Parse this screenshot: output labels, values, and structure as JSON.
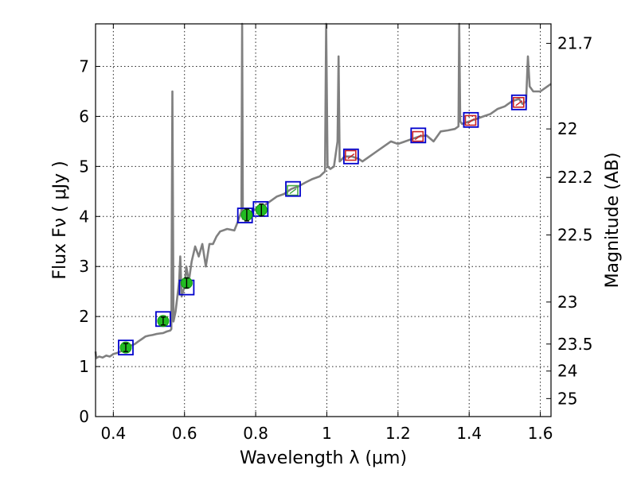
{
  "chart_data": {
    "type": "line",
    "xlabel": "Wavelength  λ (μm)",
    "ylabel": "Flux  Fν  ( μJy )",
    "ylabel_right": "Magnitude (AB)",
    "xlim": [
      0.35,
      1.63
    ],
    "ylim": [
      0,
      7.85
    ],
    "grid": true,
    "x_ticks": [
      0.4,
      0.6,
      0.8,
      1.0,
      1.2,
      1.4,
      1.6
    ],
    "x_tick_labels": [
      "0.4",
      "0.6",
      "0.8",
      "1",
      "1.2",
      "1.4",
      "1.6"
    ],
    "y_ticks": [
      0,
      1,
      2,
      3,
      4,
      5,
      6,
      7
    ],
    "y_tick_labels": [
      "0",
      "1",
      "2",
      "3",
      "4",
      "5",
      "6",
      "7"
    ],
    "mag_ticks": [
      {
        "label": "21.7",
        "flux": 7.46
      },
      {
        "label": "22",
        "flux": 5.75
      },
      {
        "label": "22.2",
        "flux": 4.78
      },
      {
        "label": "22.5",
        "flux": 3.63
      },
      {
        "label": "23",
        "flux": 2.29
      },
      {
        "label": "23.5",
        "flux": 1.45
      },
      {
        "label": "24",
        "flux": 0.91
      },
      {
        "label": "25",
        "flux": 0.36
      }
    ],
    "model_spectrum": {
      "color": "#808080",
      "points": [
        [
          0.35,
          1.3
        ],
        [
          0.352,
          1.17
        ],
        [
          0.36,
          1.2
        ],
        [
          0.37,
          1.18
        ],
        [
          0.38,
          1.22
        ],
        [
          0.39,
          1.2
        ],
        [
          0.4,
          1.25
        ],
        [
          0.41,
          1.27
        ],
        [
          0.42,
          1.3
        ],
        [
          0.43,
          1.33
        ],
        [
          0.44,
          1.38
        ],
        [
          0.45,
          1.42
        ],
        [
          0.46,
          1.45
        ],
        [
          0.47,
          1.5
        ],
        [
          0.48,
          1.55
        ],
        [
          0.49,
          1.6
        ],
        [
          0.5,
          1.62
        ],
        [
          0.51,
          1.63
        ],
        [
          0.52,
          1.65
        ],
        [
          0.53,
          1.66
        ],
        [
          0.54,
          1.67
        ],
        [
          0.55,
          1.7
        ],
        [
          0.56,
          1.72
        ],
        [
          0.563,
          1.75
        ],
        [
          0.566,
          6.5
        ],
        [
          0.569,
          1.9
        ],
        [
          0.575,
          2.1
        ],
        [
          0.585,
          2.7
        ],
        [
          0.588,
          3.2
        ],
        [
          0.592,
          2.4
        ],
        [
          0.6,
          2.6
        ],
        [
          0.605,
          3.0
        ],
        [
          0.612,
          2.7
        ],
        [
          0.62,
          3.1
        ],
        [
          0.63,
          3.4
        ],
        [
          0.64,
          3.2
        ],
        [
          0.65,
          3.45
        ],
        [
          0.66,
          3.0
        ],
        [
          0.67,
          3.45
        ],
        [
          0.68,
          3.45
        ],
        [
          0.69,
          3.6
        ],
        [
          0.7,
          3.7
        ],
        [
          0.72,
          3.75
        ],
        [
          0.74,
          3.72
        ],
        [
          0.75,
          3.9
        ],
        [
          0.76,
          4.1
        ],
        [
          0.762,
          7.85
        ],
        [
          0.764,
          3.95
        ],
        [
          0.77,
          4.0
        ],
        [
          0.78,
          4.05
        ],
        [
          0.79,
          4.1
        ],
        [
          0.8,
          4.15
        ],
        [
          0.82,
          4.2
        ],
        [
          0.84,
          4.3
        ],
        [
          0.86,
          4.4
        ],
        [
          0.88,
          4.45
        ],
        [
          0.9,
          4.55
        ],
        [
          0.92,
          4.6
        ],
        [
          0.94,
          4.68
        ],
        [
          0.96,
          4.75
        ],
        [
          0.98,
          4.8
        ],
        [
          0.995,
          4.9
        ],
        [
          0.998,
          7.85
        ],
        [
          1.002,
          5.0
        ],
        [
          1.01,
          4.95
        ],
        [
          1.02,
          5.0
        ],
        [
          1.03,
          5.5
        ],
        [
          1.033,
          7.2
        ],
        [
          1.036,
          5.1
        ],
        [
          1.05,
          5.2
        ],
        [
          1.07,
          5.2
        ],
        [
          1.09,
          5.15
        ],
        [
          1.1,
          5.1
        ],
        [
          1.12,
          5.2
        ],
        [
          1.14,
          5.3
        ],
        [
          1.16,
          5.4
        ],
        [
          1.18,
          5.5
        ],
        [
          1.2,
          5.45
        ],
        [
          1.22,
          5.5
        ],
        [
          1.24,
          5.55
        ],
        [
          1.26,
          5.6
        ],
        [
          1.28,
          5.62
        ],
        [
          1.3,
          5.5
        ],
        [
          1.32,
          5.7
        ],
        [
          1.34,
          5.72
        ],
        [
          1.36,
          5.75
        ],
        [
          1.37,
          5.8
        ],
        [
          1.372,
          7.85
        ],
        [
          1.375,
          5.9
        ],
        [
          1.38,
          5.85
        ],
        [
          1.4,
          5.9
        ],
        [
          1.42,
          5.95
        ],
        [
          1.44,
          6.0
        ],
        [
          1.46,
          6.05
        ],
        [
          1.48,
          6.15
        ],
        [
          1.5,
          6.2
        ],
        [
          1.52,
          6.3
        ],
        [
          1.54,
          6.35
        ],
        [
          1.55,
          6.25
        ],
        [
          1.56,
          6.3
        ],
        [
          1.565,
          7.2
        ],
        [
          1.57,
          6.6
        ],
        [
          1.58,
          6.5
        ],
        [
          1.6,
          6.5
        ],
        [
          1.62,
          6.6
        ],
        [
          1.63,
          6.65
        ]
      ]
    },
    "model_photometry": {
      "box_color": "#0000cc",
      "points": [
        {
          "x": 0.435,
          "y": 1.38
        },
        {
          "x": 0.54,
          "y": 1.95
        },
        {
          "x": 0.606,
          "y": 2.58
        },
        {
          "x": 0.77,
          "y": 4.02
        },
        {
          "x": 0.814,
          "y": 4.15
        },
        {
          "x": 0.905,
          "y": 4.55
        },
        {
          "x": 1.068,
          "y": 5.2
        },
        {
          "x": 1.257,
          "y": 5.62
        },
        {
          "x": 1.405,
          "y": 5.93
        },
        {
          "x": 1.54,
          "y": 6.28
        }
      ]
    },
    "observed_photometry": {
      "color": "#22bb22",
      "points": [
        {
          "x": 0.435,
          "y": 1.38,
          "err": 0.08
        },
        {
          "x": 0.54,
          "y": 1.91,
          "err": 0.08
        },
        {
          "x": 0.606,
          "y": 2.67,
          "err": 0.1
        },
        {
          "x": 0.775,
          "y": 4.03,
          "err": 0.12
        },
        {
          "x": 0.816,
          "y": 4.13,
          "err": 0.12
        }
      ]
    },
    "upper_limit_photometry": [
      {
        "x": 0.905,
        "y": 4.52,
        "color": "#44aa44"
      },
      {
        "x": 1.068,
        "y": 5.22,
        "color": "#cc2222"
      },
      {
        "x": 1.257,
        "y": 5.6,
        "color": "#cc2222"
      },
      {
        "x": 1.405,
        "y": 5.92,
        "color": "#cc2222"
      },
      {
        "x": 1.54,
        "y": 6.28,
        "color": "#cc2222"
      }
    ]
  }
}
